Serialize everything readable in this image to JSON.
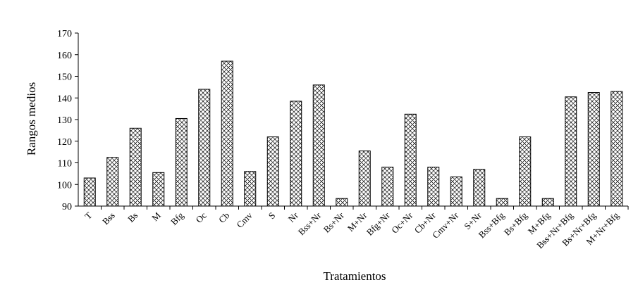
{
  "chart_data": {
    "type": "bar",
    "title": "",
    "xlabel": "Tratamientos",
    "ylabel": "Rangos medios",
    "ylim": [
      90,
      170
    ],
    "yticks": [
      90,
      100,
      110,
      120,
      130,
      140,
      150,
      160,
      170
    ],
    "grid": false,
    "legend": "none",
    "bar_fill": "crosshatch",
    "colors": {
      "bar_stroke": "#000000",
      "hatch": "#000000",
      "background": "#ffffff"
    },
    "categories": [
      "T",
      "Bss",
      "Bs",
      "M",
      "Bfg",
      "Oc",
      "Cb",
      "Cmv",
      "S",
      "Nr",
      "Bss+Nr",
      "Bs+Nr",
      "M+Nr",
      "Bfg+Nr",
      "Oc+Nr",
      "Cb+Nr",
      "Cmv+Nr",
      "S+Nr",
      "Bss+Bfg",
      "Bs+Bfg",
      "M+Bfg",
      "Bss+Nr+Bfg",
      "Bs+Nr+Bfg",
      "M+Nr+Bfg"
    ],
    "values": [
      103,
      112.5,
      126,
      105.5,
      130.5,
      144,
      157,
      106,
      122,
      138.5,
      146,
      93.5,
      115.5,
      108,
      132.5,
      108,
      103.5,
      107,
      93.5,
      122,
      93.5,
      140.5,
      142.5,
      143
    ]
  }
}
